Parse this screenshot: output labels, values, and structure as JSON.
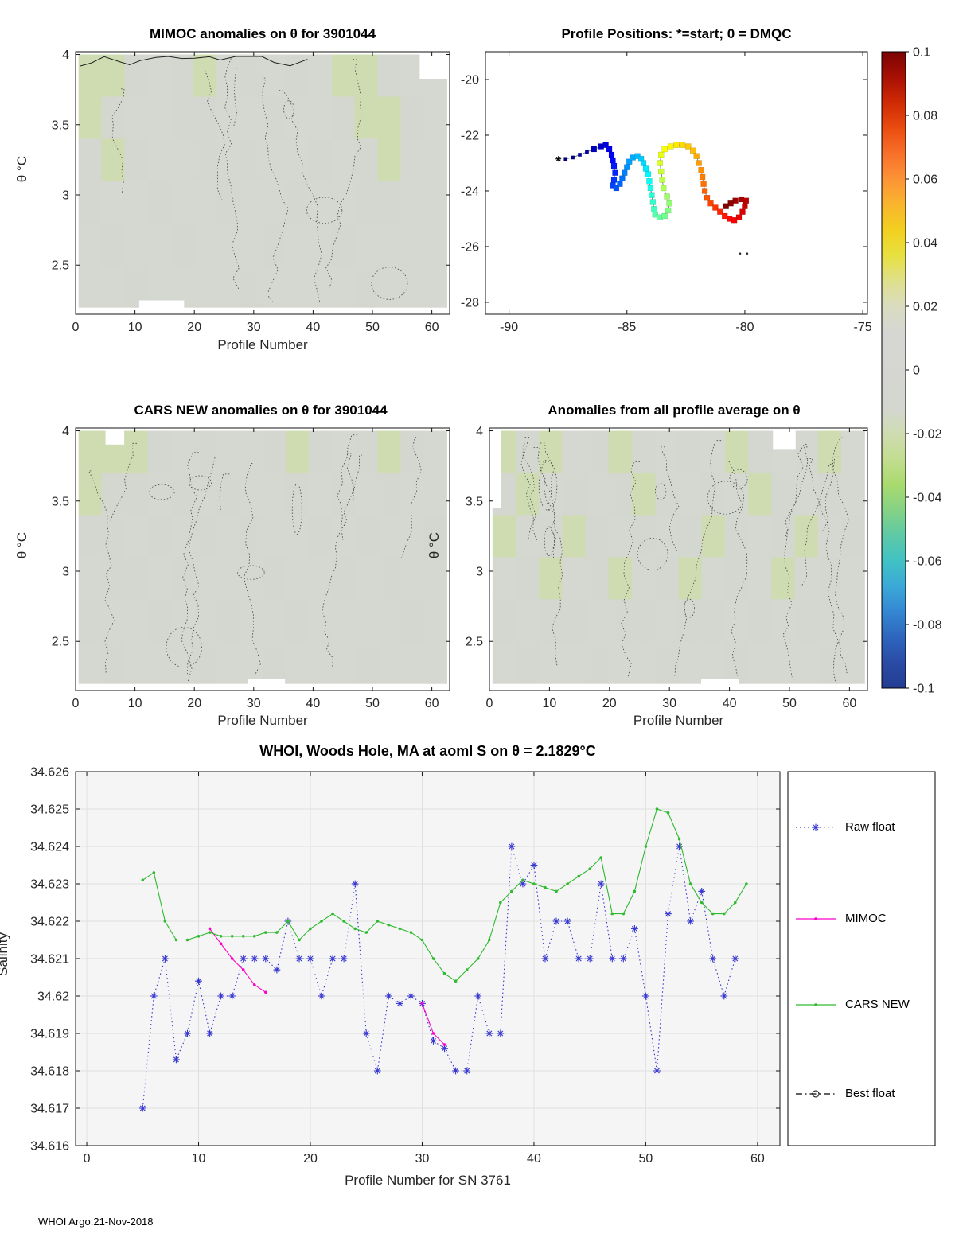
{
  "figure": {
    "footer": "WHOI Argo:21-Nov-2018"
  },
  "colorbar": {
    "ticks": [
      "0.1",
      "0.08",
      "0.06",
      "0.04",
      "0.02",
      "0",
      "-0.02",
      "-0.04",
      "-0.06",
      "-0.08",
      "-0.1"
    ],
    "stops": [
      [
        0,
        "#7a0403"
      ],
      [
        0.04,
        "#a81004"
      ],
      [
        0.08,
        "#cf2a05"
      ],
      [
        0.12,
        "#ea4c10"
      ],
      [
        0.16,
        "#f8702a"
      ],
      [
        0.2,
        "#fc9336"
      ],
      [
        0.24,
        "#f9b52e"
      ],
      [
        0.28,
        "#f2d01f"
      ],
      [
        0.32,
        "#e7e040"
      ],
      [
        0.36,
        "#dfe08c"
      ],
      [
        0.4,
        "#dadcc0"
      ],
      [
        0.44,
        "#d6d7d2"
      ],
      [
        0.56,
        "#d4d6d0"
      ],
      [
        0.6,
        "#cfdcb2"
      ],
      [
        0.64,
        "#c3dd90"
      ],
      [
        0.68,
        "#a9da6e"
      ],
      [
        0.72,
        "#86d285"
      ],
      [
        0.76,
        "#5ec9a6"
      ],
      [
        0.8,
        "#41c2c4"
      ],
      [
        0.84,
        "#3ba8d8"
      ],
      [
        0.88,
        "#3487d2"
      ],
      [
        0.92,
        "#2e66bd"
      ],
      [
        0.96,
        "#2a4ba6"
      ],
      [
        1,
        "#233c92"
      ]
    ]
  },
  "chart_data": [
    {
      "id": "mimoc_anomalies",
      "type": "heatmap",
      "title": "MIMOC anomalies on θ  for 3901044",
      "xlabel": "Profile Number",
      "ylabel": "θ °C",
      "xlim": [
        0,
        63
      ],
      "ylim": [
        2.15,
        4.02
      ],
      "xticks": [
        0,
        10,
        20,
        30,
        40,
        50,
        60
      ],
      "yticks": [
        2.5,
        3,
        3.5,
        4
      ],
      "x_range": [
        0.5,
        62.5
      ],
      "y_range": [
        2.2,
        4.0
      ],
      "colorbar_range": [
        -0.1,
        0.1
      ],
      "grid": {
        "rows": 6,
        "cols": 16,
        "values": [
          [
            -0.02,
            -0.02,
            -0.01,
            0,
            -0.01,
            -0.02,
            0,
            -0.01,
            0,
            -0.01,
            0,
            -0.02,
            -0.02,
            -0.01,
            0,
            0
          ],
          [
            -0.02,
            -0.01,
            0,
            0,
            -0.01,
            -0.01,
            0,
            0,
            -0.01,
            0,
            0,
            -0.01,
            -0.02,
            -0.02,
            -0.01,
            0
          ],
          [
            -0.01,
            -0.02,
            -0.01,
            0,
            0,
            -0.01,
            0,
            -0.01,
            0,
            0,
            -0.01,
            0,
            -0.01,
            -0.02,
            0,
            0
          ],
          [
            -0.01,
            0,
            0,
            -0.01,
            0,
            0,
            -0.01,
            0,
            0,
            -0.01,
            0,
            0,
            -0.01,
            -0.01,
            0,
            0
          ],
          [
            0,
            -0.01,
            0,
            0,
            -0.01,
            0,
            0,
            0,
            -0.01,
            0,
            0,
            -0.01,
            0,
            0,
            0,
            0
          ],
          [
            0,
            0,
            -0.01,
            0,
            0,
            0,
            0,
            -0.01,
            0,
            0,
            0,
            0,
            -0.01,
            0,
            0,
            0
          ]
        ]
      }
    },
    {
      "id": "profile_positions",
      "type": "scatter",
      "title": "Profile Positions: *=start; 0 = DMQC",
      "xlim": [
        -91,
        -74.8
      ],
      "ylim": [
        -28.43,
        -19
      ],
      "xticks": [
        -90,
        -85,
        -80,
        -75
      ],
      "yticks": [
        -28,
        -26,
        -24,
        -22,
        -20
      ],
      "trajectory": {
        "lon": [
          -87.6,
          -87.3,
          -87.0,
          -86.7,
          -86.4,
          -86.1,
          -85.9,
          -85.75,
          -85.65,
          -85.6,
          -85.55,
          -85.5,
          -85.55,
          -85.6,
          -85.45,
          -85.3,
          -85.2,
          -85.1,
          -85.0,
          -84.9,
          -84.75,
          -84.55,
          -84.4,
          -84.3,
          -84.2,
          -84.1,
          -84.05,
          -84.0,
          -83.95,
          -83.9,
          -83.85,
          -83.8,
          -83.6,
          -83.4,
          -83.25,
          -83.2,
          -83.3,
          -83.45,
          -83.5,
          -83.55,
          -83.6,
          -83.55,
          -83.4,
          -83.15,
          -82.9,
          -82.65,
          -82.4,
          -82.2,
          -82.05,
          -81.95,
          -81.85,
          -81.8,
          -81.75,
          -81.7,
          -81.6,
          -81.45,
          -81.25,
          -81.05,
          -80.85,
          -80.65,
          -80.45,
          -80.25,
          -80.1,
          -80.0,
          -79.95,
          -80.15,
          -80.4,
          -80.6,
          -80.8
        ],
        "lat": [
          -22.85,
          -22.8,
          -22.7,
          -22.6,
          -22.5,
          -22.4,
          -22.35,
          -22.5,
          -22.7,
          -22.9,
          -23.1,
          -23.35,
          -23.6,
          -23.8,
          -23.9,
          -23.75,
          -23.55,
          -23.35,
          -23.15,
          -22.95,
          -22.8,
          -22.75,
          -22.85,
          -23.0,
          -23.2,
          -23.4,
          -23.65,
          -23.9,
          -24.15,
          -24.4,
          -24.65,
          -24.85,
          -24.95,
          -24.9,
          -24.7,
          -24.45,
          -24.2,
          -23.9,
          -23.6,
          -23.3,
          -23.0,
          -22.7,
          -22.5,
          -22.4,
          -22.35,
          -22.35,
          -22.4,
          -22.55,
          -22.75,
          -23.0,
          -23.25,
          -23.5,
          -23.75,
          -24.0,
          -24.25,
          -24.45,
          -24.6,
          -24.75,
          -24.9,
          -25.0,
          -25.05,
          -24.95,
          -24.75,
          -24.55,
          -24.35,
          -24.3,
          -24.35,
          -24.45,
          -24.55
        ]
      },
      "extra_dots": {
        "lon": [
          -80.2,
          -79.9
        ],
        "lat": [
          -26.25,
          -26.25
        ]
      }
    },
    {
      "id": "cars_new_anomalies",
      "type": "heatmap",
      "title": "CARS NEW anomalies on θ for 3901044",
      "xlabel": "Profile Number",
      "ylabel": "θ °C",
      "xlim": [
        0,
        63
      ],
      "ylim": [
        2.15,
        4.02
      ],
      "xticks": [
        0,
        10,
        20,
        30,
        40,
        50,
        60
      ],
      "yticks": [
        2.5,
        3,
        3.5,
        4
      ],
      "x_range": [
        0.5,
        62.5
      ],
      "y_range": [
        2.2,
        4.0
      ],
      "colorbar_range": [
        -0.1,
        0.1
      ],
      "grid": {
        "rows": 6,
        "cols": 16,
        "values": [
          [
            -0.02,
            -0.02,
            -0.02,
            -0.01,
            0,
            -0.01,
            0,
            0,
            -0.01,
            -0.02,
            -0.01,
            0,
            -0.01,
            -0.02,
            -0.01,
            0
          ],
          [
            -0.02,
            -0.01,
            -0.01,
            0,
            -0.01,
            0,
            -0.01,
            0,
            0,
            -0.01,
            0,
            -0.01,
            0,
            -0.01,
            0,
            0
          ],
          [
            -0.01,
            -0.01,
            0,
            -0.01,
            0,
            -0.01,
            0,
            -0.01,
            0,
            0,
            -0.01,
            0,
            -0.01,
            0,
            0,
            -0.01
          ],
          [
            0,
            -0.01,
            -0.01,
            0,
            -0.01,
            0,
            0,
            0,
            -0.01,
            0,
            0,
            -0.01,
            0,
            -0.01,
            0,
            0
          ],
          [
            -0.01,
            0,
            0,
            -0.01,
            0,
            0,
            -0.01,
            0,
            0,
            -0.01,
            0,
            0,
            0,
            0,
            -0.01,
            0
          ],
          [
            0,
            -0.01,
            0,
            0,
            0,
            -0.01,
            0,
            0,
            -0.01,
            0,
            0,
            0,
            -0.01,
            0,
            0,
            0
          ]
        ]
      }
    },
    {
      "id": "all_profile_average_anomalies",
      "type": "heatmap",
      "title": "Anomalies from all profile average on θ",
      "xlabel": "Profile Number",
      "ylabel": "θ °C",
      "xlim": [
        0,
        63
      ],
      "ylim": [
        2.15,
        4.02
      ],
      "xticks": [
        0,
        10,
        20,
        30,
        40,
        50,
        60
      ],
      "yticks": [
        2.5,
        3,
        3.5,
        4
      ],
      "x_range": [
        0.5,
        62.5
      ],
      "y_range": [
        2.2,
        4.0
      ],
      "colorbar_range": [
        -0.1,
        0.1
      ],
      "grid": {
        "rows": 6,
        "cols": 16,
        "values": [
          [
            -0.02,
            -0.01,
            -0.02,
            0,
            -0.01,
            -0.02,
            -0.01,
            0,
            -0.01,
            0,
            -0.02,
            -0.01,
            0,
            -0.01,
            -0.02,
            0
          ],
          [
            -0.01,
            -0.02,
            0,
            -0.01,
            0,
            -0.01,
            -0.02,
            -0.01,
            0,
            -0.01,
            0,
            -0.02,
            -0.01,
            0,
            -0.01,
            0
          ],
          [
            -0.02,
            0,
            -0.01,
            -0.02,
            -0.01,
            0,
            -0.01,
            0,
            -0.01,
            -0.02,
            -0.01,
            0,
            -0.01,
            -0.02,
            0,
            -0.01
          ],
          [
            0,
            -0.01,
            -0.02,
            0,
            -0.01,
            -0.02,
            0,
            -0.01,
            -0.02,
            0,
            -0.01,
            0,
            -0.02,
            0,
            -0.01,
            0
          ],
          [
            -0.01,
            0,
            -0.01,
            -0.01,
            0,
            -0.01,
            -0.01,
            0,
            -0.01,
            -0.01,
            0,
            -0.01,
            0,
            -0.01,
            0,
            0
          ],
          [
            0,
            -0.01,
            0,
            0,
            -0.01,
            0,
            0,
            -0.01,
            0,
            0,
            -0.01,
            0,
            0,
            0,
            -0.01,
            0
          ]
        ]
      }
    },
    {
      "id": "salinity_comparison",
      "type": "line",
      "title": "WHOI, Woods Hole, MA at aoml S on θ = 2.1829°C",
      "xlabel": "Profile Number for SN 3761",
      "ylabel": "Salinity",
      "xlim": [
        -1,
        62
      ],
      "ylim": [
        34.616,
        34.626
      ],
      "xticks": [
        0,
        10,
        20,
        30,
        40,
        50,
        60
      ],
      "yticks": [
        34.616,
        34.617,
        34.618,
        34.619,
        34.62,
        34.621,
        34.622,
        34.623,
        34.624,
        34.625,
        34.626
      ],
      "ytick_labels": [
        "34.616",
        "34.617",
        "34.618",
        "34.619",
        "34.62",
        "34.621",
        "34.622",
        "34.623",
        "34.624",
        "34.625",
        "34.626"
      ],
      "series": [
        {
          "name": "Raw float",
          "style": "dotted",
          "marker": "asterisk",
          "color": "#3636cf",
          "x": [
            5,
            6,
            7,
            8,
            9,
            10,
            11,
            12,
            13,
            14,
            15,
            16,
            17,
            18,
            19,
            20,
            21,
            22,
            23,
            24,
            25,
            26,
            27,
            28,
            29,
            30,
            31,
            32,
            33,
            34,
            35,
            36,
            37,
            38,
            39,
            40,
            41,
            42,
            43,
            44,
            45,
            46,
            47,
            48,
            49,
            50,
            51,
            52,
            53,
            54,
            55,
            56,
            57,
            58
          ],
          "y": [
            34.617,
            34.62,
            34.621,
            34.6183,
            34.619,
            34.6204,
            34.619,
            34.62,
            34.62,
            34.621,
            34.621,
            34.621,
            34.6207,
            34.622,
            34.621,
            34.621,
            34.62,
            34.621,
            34.621,
            34.623,
            34.619,
            34.618,
            34.62,
            34.6198,
            34.62,
            34.6198,
            34.6188,
            34.6186,
            34.618,
            34.618,
            34.62,
            34.619,
            34.619,
            34.624,
            34.623,
            34.6235,
            34.621,
            34.622,
            34.622,
            34.621,
            34.621,
            34.623,
            34.621,
            34.621,
            34.6218,
            34.62,
            34.618,
            34.6222,
            34.624,
            34.622,
            34.6228,
            34.621,
            34.62,
            34.621
          ]
        },
        {
          "name": "MIMOC",
          "style": "solid",
          "marker": "dot",
          "color": "#ff00c8",
          "segments": [
            {
              "x": [
                11,
                12,
                13,
                14,
                15,
                16
              ],
              "y": [
                34.6218,
                34.6214,
                34.621,
                34.6207,
                34.6203,
                34.6201
              ]
            },
            {
              "x": [
                30,
                31,
                32
              ],
              "y": [
                34.6198,
                34.619,
                34.6187
              ]
            }
          ]
        },
        {
          "name": "CARS NEW",
          "style": "solid",
          "marker": "dot",
          "color": "#2fba2f",
          "x": [
            5,
            6,
            7,
            8,
            9,
            10,
            11,
            12,
            13,
            14,
            15,
            16,
            17,
            18,
            19,
            20,
            21,
            22,
            23,
            24,
            25,
            26,
            27,
            28,
            29,
            30,
            31,
            32,
            33,
            34,
            35,
            36,
            37,
            38,
            39,
            40,
            41,
            42,
            43,
            44,
            45,
            46,
            47,
            48,
            49,
            50,
            51,
            52,
            53,
            54,
            55,
            56,
            57,
            58,
            59
          ],
          "y": [
            34.6231,
            34.6233,
            34.622,
            34.6215,
            34.6215,
            34.6216,
            34.6217,
            34.6216,
            34.6216,
            34.6216,
            34.6216,
            34.6217,
            34.6217,
            34.622,
            34.6215,
            34.6218,
            34.622,
            34.6222,
            34.622,
            34.6218,
            34.6217,
            34.622,
            34.6219,
            34.6218,
            34.6217,
            34.6215,
            34.621,
            34.6206,
            34.6204,
            34.6207,
            34.621,
            34.6215,
            34.6225,
            34.6228,
            34.6231,
            34.623,
            34.6229,
            34.6228,
            34.623,
            34.6232,
            34.6234,
            34.6237,
            34.6222,
            34.6222,
            34.6228,
            34.624,
            34.625,
            34.6249,
            34.6242,
            34.623,
            34.6225,
            34.6222,
            34.6222,
            34.6225,
            34.623
          ]
        },
        {
          "name": "Best float",
          "style": "dashdot",
          "marker": "circle",
          "color": "#000000",
          "x": [],
          "y": []
        }
      ],
      "legend": [
        "Raw float",
        "MIMOC",
        "CARS NEW",
        "Best float"
      ]
    }
  ]
}
